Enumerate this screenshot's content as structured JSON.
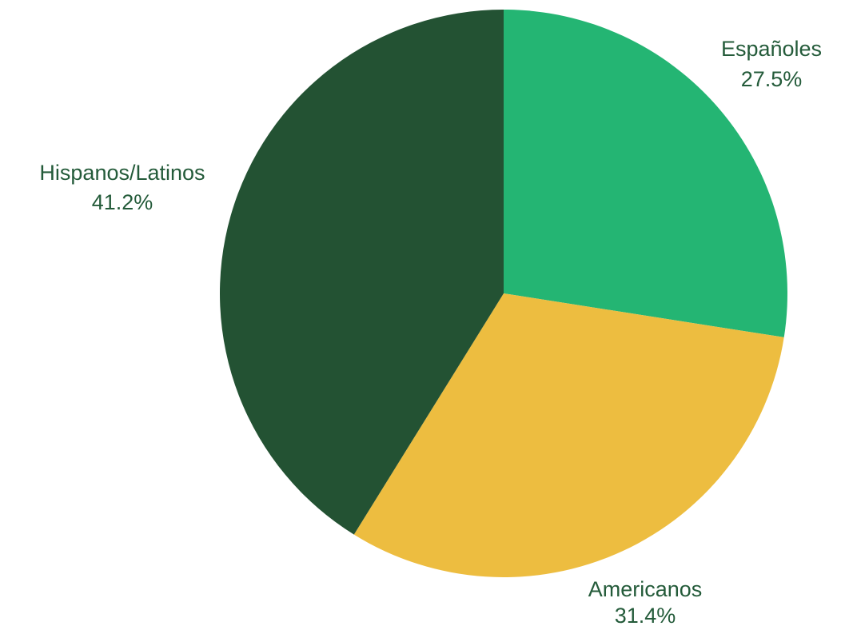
{
  "chart_data": {
    "type": "pie",
    "start_angle_deg": 0,
    "direction": "clockwise",
    "slices": [
      {
        "name": "Españoles",
        "value": 27.5,
        "label": "27.5%",
        "color": "#24b573"
      },
      {
        "name": "Americanos",
        "value": 31.4,
        "label": "31.4%",
        "color": "#edbd40"
      },
      {
        "name": "Hispanos/Latinos",
        "value": 41.2,
        "label": "41.2%",
        "color": "#235233"
      }
    ],
    "label_color": "#245b3a"
  }
}
